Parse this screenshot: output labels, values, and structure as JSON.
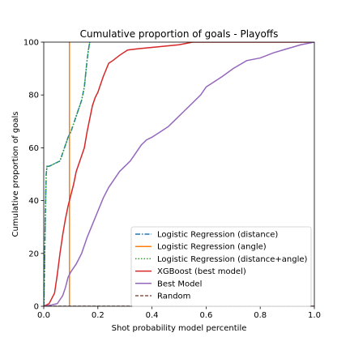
{
  "chart_data": {
    "type": "line",
    "title": "Cumulative proportion of goals - Playoffs",
    "xlabel": "Shot probability model percentile",
    "ylabel": "Cumulative proportion of goals",
    "xlim": [
      0.0,
      1.0
    ],
    "ylim": [
      0,
      100
    ],
    "xticks": [
      "0.0",
      "0.2",
      "0.4",
      "0.6",
      "0.8",
      "1.0"
    ],
    "yticks": [
      "0",
      "20",
      "40",
      "60",
      "80",
      "100"
    ],
    "grid": false,
    "legend_position": "bottom-right",
    "series": [
      {
        "name": "Logistic Regression (distance)",
        "color": "#1f77b4",
        "style": "dashdot",
        "x": [
          0.0,
          0.003,
          0.006,
          0.009,
          0.012,
          0.02,
          0.04,
          0.06,
          0.07,
          0.08,
          0.09,
          0.1,
          0.11,
          0.12,
          0.13,
          0.14,
          0.15,
          0.155,
          0.16,
          0.165,
          0.17
        ],
        "y": [
          0,
          15,
          35,
          50,
          53,
          53,
          54,
          55,
          58,
          61,
          64,
          66,
          69,
          72,
          75,
          78,
          83,
          88,
          93,
          97,
          100
        ]
      },
      {
        "name": "Logistic Regression (angle)",
        "color": "#ff7f0e",
        "style": "solid",
        "x": [
          0.095,
          0.095
        ],
        "y": [
          0,
          100
        ]
      },
      {
        "name": "Logistic Regression (distance+angle)",
        "color": "#2ca02c",
        "style": "dotted",
        "x": [
          0.0,
          0.003,
          0.006,
          0.009,
          0.012,
          0.02,
          0.04,
          0.06,
          0.07,
          0.08,
          0.09,
          0.1,
          0.11,
          0.12,
          0.13,
          0.14,
          0.15,
          0.155,
          0.16,
          0.165,
          0.17
        ],
        "y": [
          0,
          15,
          35,
          50,
          53,
          53,
          54,
          55,
          58,
          61,
          64,
          66,
          69,
          72,
          75,
          78,
          83,
          88,
          93,
          97,
          100
        ]
      },
      {
        "name": "XGBoost (best model)",
        "color": "#d62728",
        "style": "solid",
        "x": [
          0.0,
          0.02,
          0.04,
          0.05,
          0.06,
          0.07,
          0.08,
          0.09,
          0.1,
          0.11,
          0.12,
          0.13,
          0.14,
          0.15,
          0.16,
          0.17,
          0.18,
          0.19,
          0.2,
          0.22,
          0.24,
          0.255,
          0.28,
          0.31,
          0.35,
          0.4,
          0.45,
          0.5,
          0.55,
          1.0
        ],
        "y": [
          0,
          1,
          5,
          12,
          20,
          27,
          33,
          38,
          42,
          46,
          51,
          54,
          57,
          60,
          66,
          71,
          76,
          79,
          81,
          87,
          92,
          93,
          95,
          97,
          97.5,
          98,
          98.5,
          99,
          100,
          100
        ]
      },
      {
        "name": "Best Model",
        "color": "#9467bd",
        "style": "solid",
        "x": [
          0.0,
          0.03,
          0.05,
          0.07,
          0.08,
          0.09,
          0.1,
          0.12,
          0.14,
          0.16,
          0.18,
          0.2,
          0.22,
          0.24,
          0.26,
          0.28,
          0.3,
          0.32,
          0.34,
          0.36,
          0.38,
          0.4,
          0.43,
          0.46,
          0.49,
          0.52,
          0.55,
          0.58,
          0.6,
          0.63,
          0.66,
          0.7,
          0.75,
          0.8,
          0.85,
          0.9,
          0.95,
          1.0
        ],
        "y": [
          0,
          0.5,
          1,
          4,
          7,
          11,
          13,
          16,
          20,
          26,
          31,
          36,
          41,
          45,
          48,
          51,
          53,
          55,
          58,
          61,
          63,
          64,
          66,
          68,
          71,
          74,
          77,
          80,
          83,
          85,
          87,
          90,
          93,
          94,
          96,
          97.5,
          99,
          100
        ]
      },
      {
        "name": "Random",
        "color": "#8c564b",
        "style": "dashed",
        "x": [
          0.0,
          1.0
        ],
        "y": [
          0,
          0
        ]
      }
    ]
  }
}
